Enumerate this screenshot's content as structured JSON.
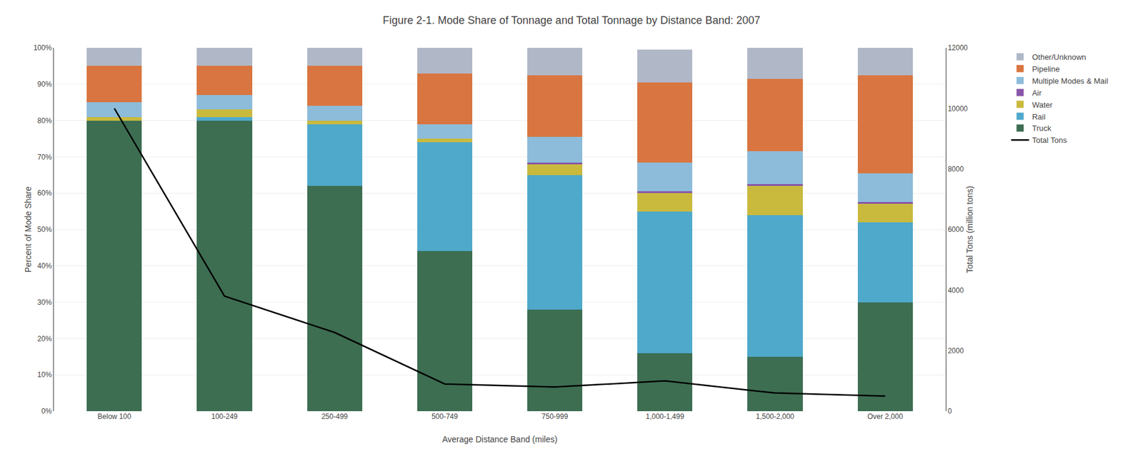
{
  "chart_data": {
    "type": "bar",
    "stacked": true,
    "title": "Figure 2-1. Mode Share of Tonnage and Total Tonnage by Distance Band: 2007",
    "xlabel": "Average Distance Band (miles)",
    "ylabel": "Percent of Mode Share",
    "y2label": "Total Tons (million tons)",
    "categories": [
      "Below 100",
      "100-249",
      "250-499",
      "500-749",
      "750-999",
      "1,000-1,499",
      "1,500-2,000",
      "Over 2,000"
    ],
    "series": [
      {
        "name": "Truck",
        "color": "#3d6e52",
        "values": [
          80,
          80,
          62,
          44,
          28,
          16,
          15,
          30
        ]
      },
      {
        "name": "Rail",
        "color": "#4fa9cb",
        "values": [
          0,
          1,
          17,
          30,
          37,
          39,
          39,
          22
        ]
      },
      {
        "name": "Water",
        "color": "#c9ba3e",
        "values": [
          1,
          2,
          1,
          1,
          3,
          5,
          8,
          5
        ]
      },
      {
        "name": "Air",
        "color": "#8855a8",
        "values": [
          0,
          0,
          0,
          0,
          0.5,
          0.5,
          0.5,
          0.5
        ]
      },
      {
        "name": "Multiple Modes & Mail",
        "color": "#8dbcda",
        "values": [
          4,
          4,
          4,
          4,
          7,
          8,
          9,
          8
        ]
      },
      {
        "name": "Pipeline",
        "color": "#d97540",
        "values": [
          10,
          8,
          11,
          14,
          17,
          22,
          20,
          27
        ]
      },
      {
        "name": "Other/Unknown",
        "color": "#b0b8c8",
        "values": [
          5,
          5,
          5,
          7,
          7.5,
          9,
          8.5,
          7.5
        ]
      },
      {
        "name": "Total Tons",
        "type": "line",
        "axis": "y2",
        "color": "#000000",
        "values": [
          10000,
          3800,
          2600,
          900,
          800,
          1000,
          600,
          500
        ]
      }
    ],
    "ylim": [
      0,
      100
    ],
    "yticks": [
      {
        "value": 0,
        "label": "0%"
      },
      {
        "value": 10,
        "label": "10%"
      },
      {
        "value": 20,
        "label": "20%"
      },
      {
        "value": 30,
        "label": "30%"
      },
      {
        "value": 40,
        "label": "40%"
      },
      {
        "value": 50,
        "label": "50%"
      },
      {
        "value": 60,
        "label": "60%"
      },
      {
        "value": 70,
        "label": "70%"
      },
      {
        "value": 80,
        "label": "80%"
      },
      {
        "value": 90,
        "label": "90%"
      },
      {
        "value": 100,
        "label": "100%"
      }
    ],
    "y2lim": [
      0,
      12000
    ],
    "y2ticks": [
      0,
      2000,
      4000,
      6000,
      8000,
      10000,
      12000
    ],
    "grid": true,
    "legend": "right"
  }
}
